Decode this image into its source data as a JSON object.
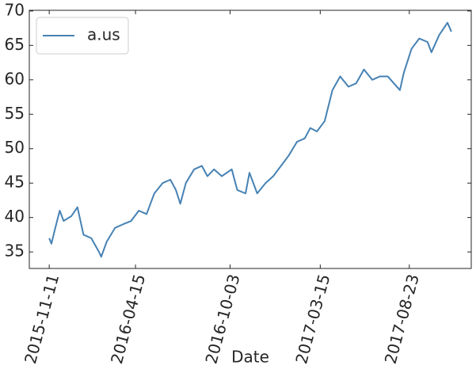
{
  "chart_data": {
    "type": "line",
    "x_label": "Date",
    "x": [
      "2015-11-11",
      "2015-11-15",
      "2015-11-22",
      "2015-11-30",
      "2015-12-07",
      "2015-12-21",
      "2016-01-01",
      "2016-01-12",
      "2016-01-26",
      "2016-02-09",
      "2016-02-13",
      "2016-02-23",
      "2016-03-09",
      "2016-03-23",
      "2016-04-07",
      "2016-04-21",
      "2016-05-05",
      "2016-05-19",
      "2016-06-03",
      "2016-06-17",
      "2016-06-27",
      "2016-07-05",
      "2016-07-15",
      "2016-07-30",
      "2016-08-13",
      "2016-08-23",
      "2016-09-04",
      "2016-09-18",
      "2016-10-06",
      "2016-10-16",
      "2016-10-31",
      "2016-11-07",
      "2016-11-21",
      "2016-12-06",
      "2016-12-20",
      "2017-01-03",
      "2017-01-17",
      "2017-02-01",
      "2017-02-15",
      "2017-02-25",
      "2017-03-09",
      "2017-03-23",
      "2017-04-06",
      "2017-04-20",
      "2017-05-05",
      "2017-05-19",
      "2017-06-02",
      "2017-06-17",
      "2017-07-01",
      "2017-07-15",
      "2017-08-06",
      "2017-08-13",
      "2017-08-27",
      "2017-09-10",
      "2017-09-25",
      "2017-10-02",
      "2017-10-16",
      "2017-10-31",
      "2017-11-07"
    ],
    "series": [
      {
        "name": "a.us",
        "color": "#4682b4",
        "values": [
          37,
          36.2,
          38.5,
          41,
          39.5,
          40.2,
          41.5,
          37.5,
          37,
          35,
          34.3,
          36.5,
          38.5,
          39,
          39.5,
          41,
          40.5,
          43.5,
          45,
          45.5,
          44,
          42,
          45,
          47,
          47.5,
          46,
          47,
          46,
          47,
          44,
          43.5,
          46.5,
          43.5,
          45,
          46,
          47.5,
          49,
          51,
          51.5,
          53,
          52.5,
          54,
          58.5,
          60.5,
          59,
          59.5,
          61.5,
          60,
          60.5,
          60.5,
          58.5,
          61,
          64.5,
          66,
          65.5,
          64,
          66.5,
          68.3,
          67
        ]
      }
    ],
    "xlim": [
      "2015-10-06",
      "2017-12-13"
    ],
    "xticks": [
      "2015-11-11",
      "2016-04-15",
      "2016-10-03",
      "2017-03-15",
      "2017-08-23"
    ],
    "ylim": [
      32.6,
      70.1
    ],
    "yticks": [
      35,
      40,
      45,
      50,
      55,
      60,
      65,
      70
    ],
    "legend": "upper left",
    "grid": false
  }
}
